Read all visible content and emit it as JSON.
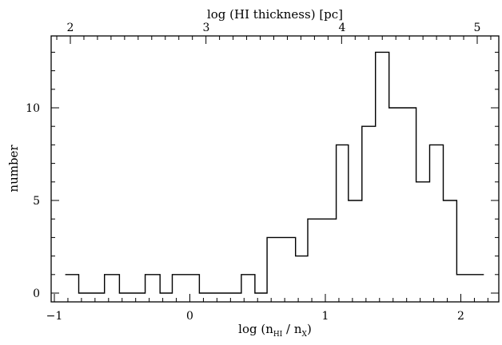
{
  "chart_data": {
    "type": "histogram",
    "xlabel_main": "log (n",
    "xlabel_sub1": "HI",
    "xlabel_mid": " / n",
    "xlabel_sub2": "X",
    "xlabel_end": ")",
    "ylabel": "number",
    "top_label": "log (HI thickness) [pc]",
    "xlim": [
      -1.0,
      2.25
    ],
    "ylim": [
      -0.5,
      13.7
    ],
    "x_ticks": [
      -1,
      0,
      1,
      2
    ],
    "y_ticks": [
      0,
      5,
      10
    ],
    "top_ticks": [
      2,
      3,
      4,
      5
    ],
    "bin_edges": [
      -0.92,
      -0.82,
      -0.63,
      -0.52,
      -0.33,
      -0.22,
      -0.13,
      0.07,
      0.38,
      0.48,
      0.57,
      0.78,
      0.87,
      1.08,
      1.17,
      1.27,
      1.37,
      1.47,
      1.67,
      1.77,
      1.87,
      1.97,
      2.17
    ],
    "counts": [
      1,
      0,
      1,
      0,
      1,
      0,
      1,
      0,
      1,
      0,
      3,
      2,
      4,
      8,
      5,
      9,
      13,
      10,
      6,
      8,
      5,
      1
    ],
    "grid": false
  }
}
